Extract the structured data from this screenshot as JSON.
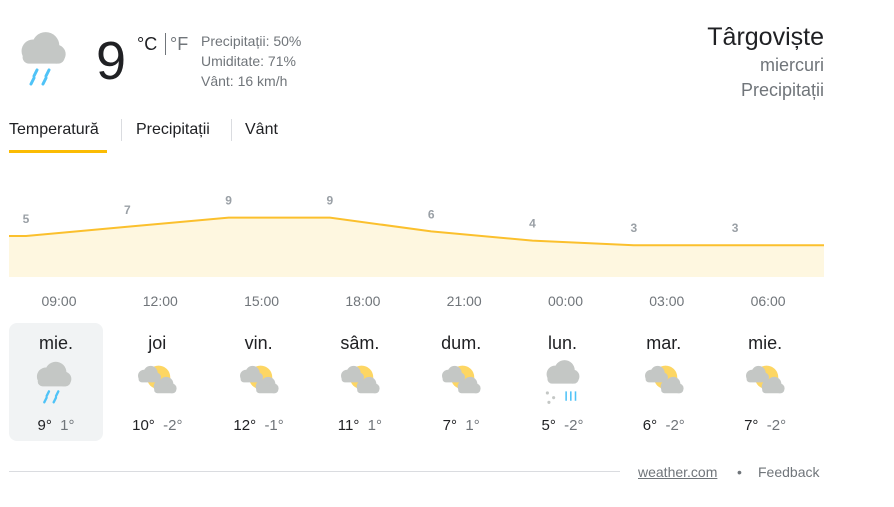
{
  "current": {
    "temperature": "9",
    "unit_c": "°C",
    "unit_f": "°F",
    "details": [
      "Precipitații: 50%",
      "Umiditate: 71%",
      "Vânt: 16 km/h"
    ],
    "icon": "rain"
  },
  "location": {
    "city": "Târgoviște",
    "day": "miercuri",
    "condition": "Precipitații"
  },
  "tabs": [
    "Temperatură",
    "Precipitații",
    "Vânt"
  ],
  "chart_data": {
    "type": "area",
    "categories": [
      "09:00",
      "12:00",
      "15:00",
      "18:00",
      "21:00",
      "00:00",
      "03:00",
      "06:00"
    ],
    "values": [
      5,
      7,
      9,
      9,
      6,
      4,
      3,
      3
    ],
    "color": "#fbc02d",
    "fill": "#fef7e0"
  },
  "daily": [
    {
      "day": "mie.",
      "high": "9°",
      "low": "1°",
      "icon": "rain",
      "selected": true
    },
    {
      "day": "joi",
      "high": "10°",
      "low": "-2°",
      "icon": "partly-sunny"
    },
    {
      "day": "vin.",
      "high": "12°",
      "low": "-1°",
      "icon": "partly-sunny"
    },
    {
      "day": "sâm.",
      "high": "11°",
      "low": "1°",
      "icon": "partly-sunny"
    },
    {
      "day": "dum.",
      "high": "7°",
      "low": "1°",
      "icon": "partly-sunny"
    },
    {
      "day": "lun.",
      "high": "5°",
      "low": "-2°",
      "icon": "snow-rain"
    },
    {
      "day": "mar.",
      "high": "6°",
      "low": "-2°",
      "icon": "partly-sunny"
    },
    {
      "day": "mie.",
      "high": "7°",
      "low": "-2°",
      "icon": "partly-sunny"
    }
  ],
  "footer": {
    "source": "weather.com",
    "separator": "•",
    "feedback": "Feedback"
  }
}
